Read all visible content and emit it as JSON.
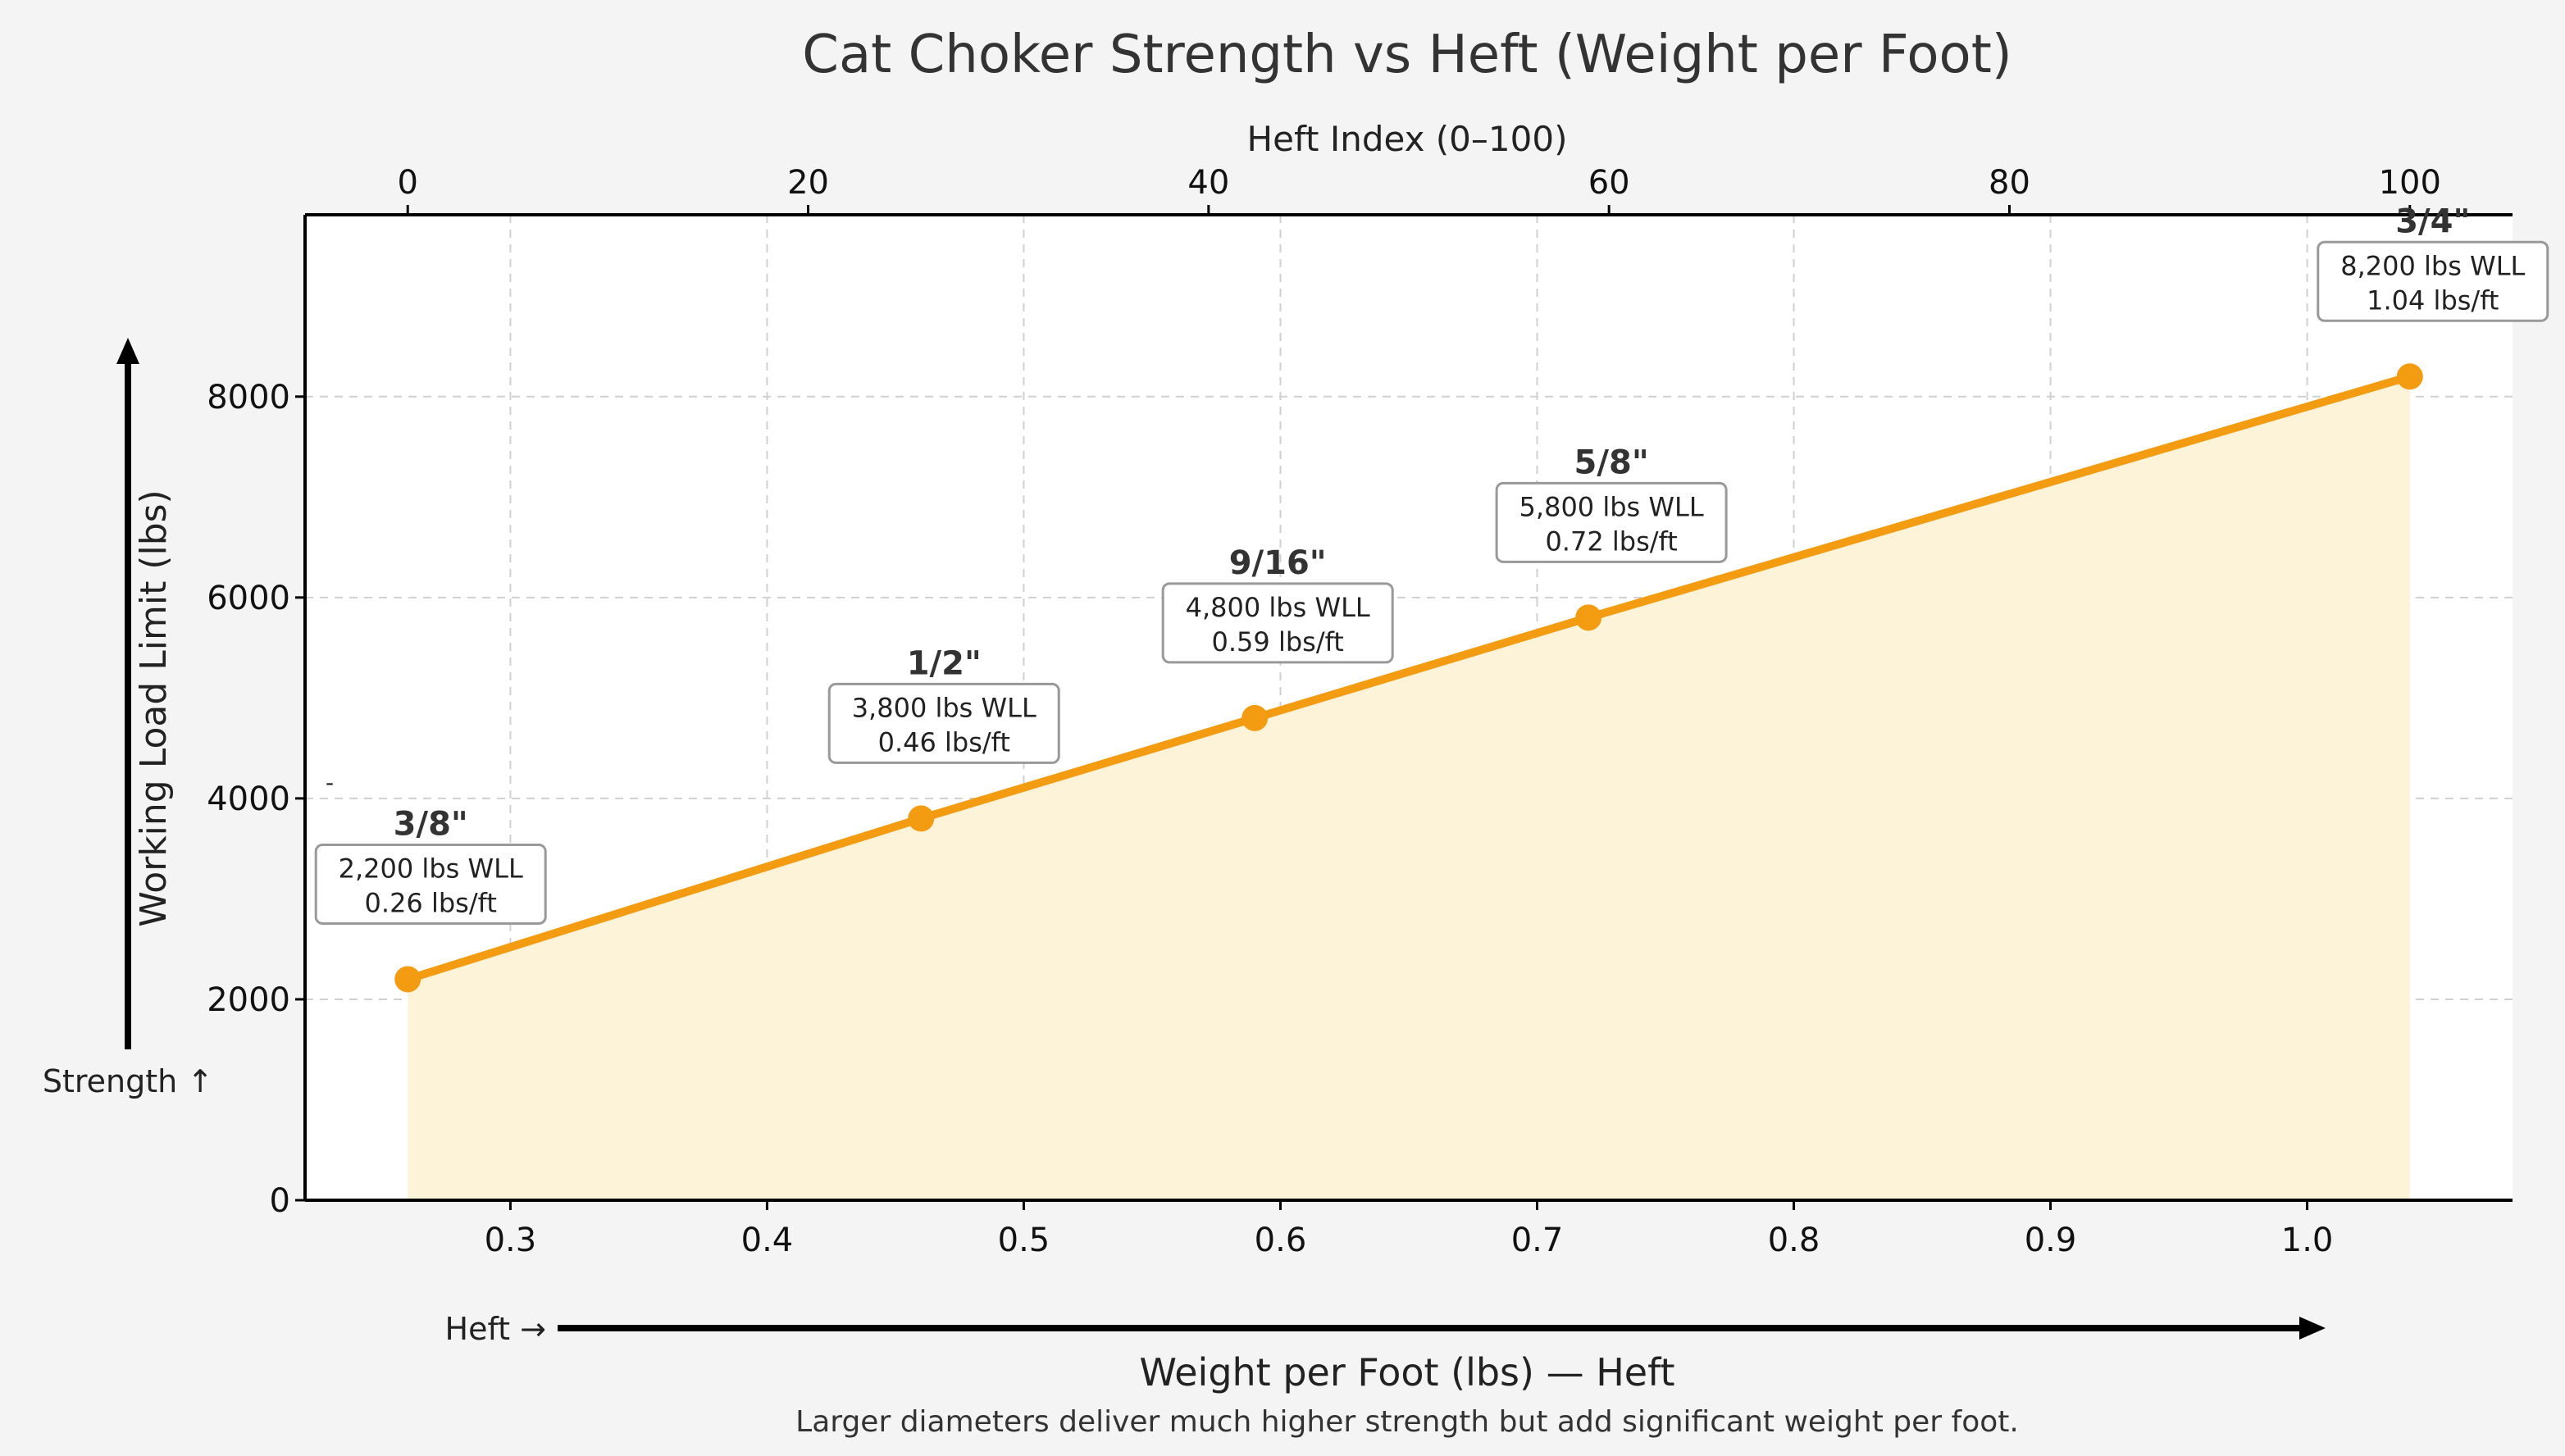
{
  "chart_data": {
    "type": "line",
    "title": "Cat Choker Strength vs Heft (Weight per Foot)",
    "xlabel": "Weight per Foot (lbs) — Heft",
    "ylabel": "Working Load Limit (lbs)",
    "x2label": "Heft Index (0–100)",
    "caption": "Larger diameters deliver much higher strength but add significant weight per foot.",
    "xlim": [
      0.22,
      1.08
    ],
    "ylim": [
      0,
      9810
    ],
    "x2lim_map": [
      0.26,
      1.04
    ],
    "xticks": [
      "0.3",
      "0.4",
      "0.5",
      "0.6",
      "0.7",
      "0.8",
      "0.9",
      "1.0"
    ],
    "yticks": [
      "0",
      "2000",
      "4000",
      "6000",
      "8000"
    ],
    "x2ticks": [
      "0",
      "20",
      "40",
      "60",
      "80",
      "100"
    ],
    "grid": true,
    "fill_under": true,
    "colors": {
      "line": "#f39c12",
      "fill": "#fcf3d9",
      "background": "#f4f4f4",
      "plot": "#ffffff"
    },
    "series": [
      {
        "points": [
          {
            "x": 0.26,
            "y": 2200,
            "label": "3/8\"",
            "wll": "2,200 lbs WLL",
            "wpf": "0.26 lbs/ft"
          },
          {
            "x": 0.46,
            "y": 3800,
            "label": "1/2\"",
            "wll": "3,800 lbs WLL",
            "wpf": "0.46 lbs/ft"
          },
          {
            "x": 0.59,
            "y": 4800,
            "label": "9/16\"",
            "wll": "4,800 lbs WLL",
            "wpf": "0.59 lbs/ft"
          },
          {
            "x": 0.72,
            "y": 5800,
            "label": "5/8\"",
            "wll": "5,800 lbs WLL",
            "wpf": "0.72 lbs/ft"
          },
          {
            "x": 1.04,
            "y": 8200,
            "label": "3/4\"",
            "wll": "8,200 lbs WLL",
            "wpf": "1.04 lbs/ft"
          }
        ]
      }
    ],
    "annotations": {
      "strength_arrow": "Strength ↑",
      "heft_arrow": "Heft →",
      "stray_mark": "-"
    }
  }
}
